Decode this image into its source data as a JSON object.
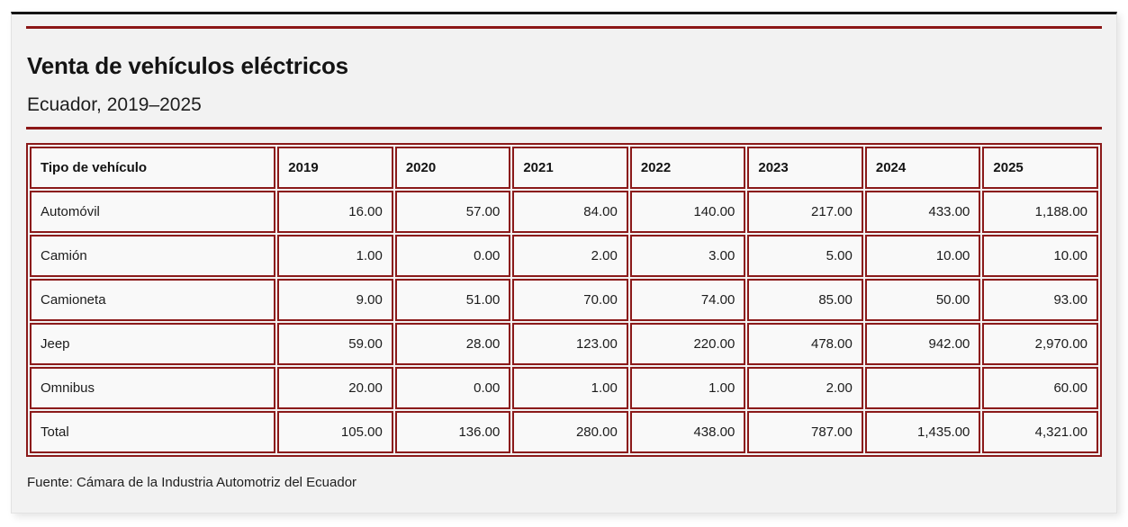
{
  "theme": {
    "accent_red": "#8b1a1a",
    "rule_red": "#8b1616",
    "top_border_black": "#141414",
    "card_bg": "#f2f2f2",
    "cell_bg": "#f9f9f9"
  },
  "header": {
    "title": "Venta de vehículos eléctricos",
    "subtitle": "Ecuador, 2019–2025"
  },
  "table": {
    "columns": [
      "Tipo de vehículo",
      "2019",
      "2020",
      "2021",
      "2022",
      "2023",
      "2024",
      "2025"
    ],
    "rows": [
      {
        "label": "Automóvil",
        "values": [
          "16.00",
          "57.00",
          "84.00",
          "140.00",
          "217.00",
          "433.00",
          "1,188.00"
        ]
      },
      {
        "label": "Camión",
        "values": [
          "1.00",
          "0.00",
          "2.00",
          "3.00",
          "5.00",
          "10.00",
          "10.00"
        ]
      },
      {
        "label": "Camioneta",
        "values": [
          "9.00",
          "51.00",
          "70.00",
          "74.00",
          "85.00",
          "50.00",
          "93.00"
        ]
      },
      {
        "label": "Jeep",
        "values": [
          "59.00",
          "28.00",
          "123.00",
          "220.00",
          "478.00",
          "942.00",
          "2,970.00"
        ]
      },
      {
        "label": "Omnibus",
        "values": [
          "20.00",
          "0.00",
          "1.00",
          "1.00",
          "2.00",
          "",
          "60.00"
        ]
      },
      {
        "label": "Total",
        "values": [
          "105.00",
          "136.00",
          "280.00",
          "438.00",
          "787.00",
          "1,435.00",
          "4,321.00"
        ]
      }
    ]
  },
  "footer": {
    "source": "Fuente: Cámara de la Industria Automotriz del Ecuador"
  },
  "chart_data": {
    "type": "table",
    "title": "Venta de vehículos eléctricos",
    "subtitle": "Ecuador, 2019–2025",
    "categories": [
      "2019",
      "2020",
      "2021",
      "2022",
      "2023",
      "2024",
      "2025"
    ],
    "series": [
      {
        "name": "Automóvil",
        "values": [
          16,
          57,
          84,
          140,
          217,
          433,
          1188
        ]
      },
      {
        "name": "Camión",
        "values": [
          1,
          0,
          2,
          3,
          5,
          10,
          10
        ]
      },
      {
        "name": "Camioneta",
        "values": [
          9,
          51,
          70,
          74,
          85,
          50,
          93
        ]
      },
      {
        "name": "Jeep",
        "values": [
          59,
          28,
          123,
          220,
          478,
          942,
          2970
        ]
      },
      {
        "name": "Omnibus",
        "values": [
          20,
          0,
          1,
          1,
          2,
          null,
          60
        ]
      },
      {
        "name": "Total",
        "values": [
          105,
          136,
          280,
          438,
          787,
          1435,
          4321
        ]
      }
    ],
    "source": "Fuente: Cámara de la Industria Automotriz del Ecuador"
  }
}
